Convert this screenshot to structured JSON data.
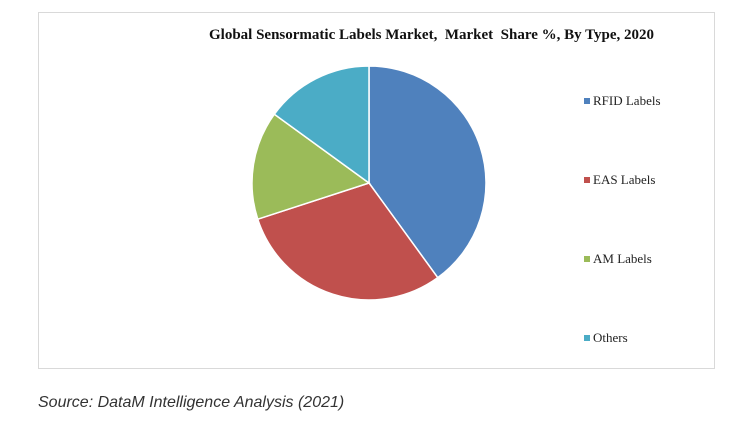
{
  "chart_data": {
    "type": "pie",
    "title": "Global Sensormatic Labels Market,  Market  Share %, By Type, 2020",
    "categories": [
      "RFID Labels",
      "EAS Labels",
      "AM Labels",
      "Others"
    ],
    "values": [
      40,
      30,
      15,
      15
    ],
    "unit": "%",
    "start_angle_deg": 0,
    "direction": "clockwise",
    "colors": [
      "#4f81bd",
      "#c0504d",
      "#9bbb59",
      "#4bacc6"
    ],
    "legend_position": "right"
  },
  "source": "Source: DataM Intelligence Analysis (2021)"
}
